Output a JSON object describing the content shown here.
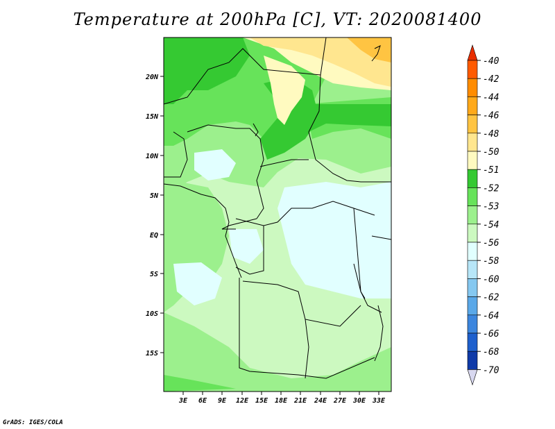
{
  "title": "Temperature at 200hPa [C], VT: 2020081400",
  "credit": "GrADS: IGES/COLA",
  "map": {
    "lat_labels": [
      "20N",
      "15N",
      "10N",
      "5N",
      "EQ",
      "5S",
      "10S",
      "15S"
    ],
    "lon_labels": [
      "3E",
      "6E",
      "9E",
      "12E",
      "15E",
      "18E",
      "21E",
      "24E",
      "27E",
      "30E",
      "33E"
    ]
  },
  "colorbar": {
    "levels": [
      "-40",
      "-42",
      "-44",
      "-46",
      "-48",
      "-50",
      "-51",
      "-52",
      "-53",
      "-54",
      "-56",
      "-58",
      "-60",
      "-62",
      "-64",
      "-66",
      "-68",
      "-70"
    ],
    "colors": [
      "#e82e00",
      "#ff5a00",
      "#ff8c00",
      "#ffa91a",
      "#ffc442",
      "#ffe68f",
      "#fffac0",
      "#35c932",
      "#67e35a",
      "#9cf08d",
      "#ccf9c0",
      "#e1ffff",
      "#b7e6f8",
      "#85c8f0",
      "#5aa8e8",
      "#3c86de",
      "#1e60cd",
      "#0f3aa8",
      "#04147a"
    ],
    "top_arrow_color": "#e82e00",
    "bottom_arrow_color": "#d8d8f0"
  }
}
